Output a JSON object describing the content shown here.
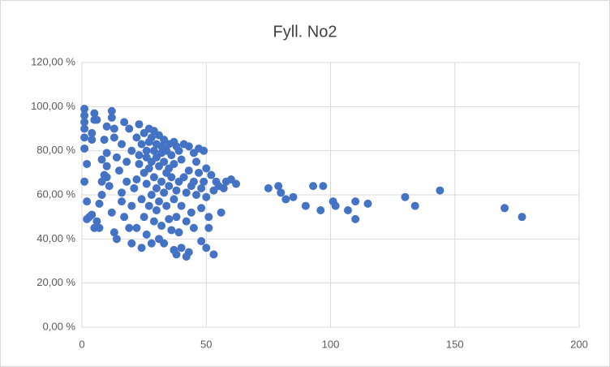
{
  "chart_data": {
    "type": "scatter",
    "title": "Fyll. No2",
    "color": "#4472c4",
    "grid": true,
    "x": [
      1,
      1,
      1,
      1,
      1,
      1,
      2,
      1,
      2,
      2,
      3,
      4,
      4,
      5,
      5,
      4,
      5,
      6,
      7,
      7,
      8,
      6,
      8,
      8,
      9,
      9,
      10,
      10,
      10,
      11,
      10,
      12,
      12,
      12,
      13,
      13,
      14,
      13,
      14,
      15,
      16,
      16,
      16,
      17,
      17,
      18,
      18,
      19,
      19,
      20,
      20,
      20,
      21,
      22,
      22,
      22,
      23,
      23,
      23,
      24,
      24,
      24,
      25,
      25,
      25,
      26,
      26,
      26,
      26,
      27,
      27,
      27,
      27,
      28,
      28,
      28,
      28,
      29,
      29,
      29,
      29,
      30,
      30,
      30,
      30,
      31,
      31,
      31,
      31,
      32,
      32,
      32,
      32,
      33,
      33,
      33,
      33,
      34,
      34,
      34,
      35,
      35,
      35,
      35,
      36,
      36,
      36,
      37,
      37,
      37,
      38,
      38,
      38,
      39,
      39,
      39,
      40,
      40,
      40,
      41,
      41,
      42,
      42,
      43,
      43,
      44,
      44,
      45,
      45,
      45,
      46,
      46,
      47,
      47,
      48,
      48,
      49,
      49,
      50,
      50,
      51,
      51,
      52,
      53,
      54,
      55,
      58,
      62,
      60,
      57,
      56,
      53,
      50,
      48,
      42,
      43,
      37,
      38,
      75,
      79,
      80,
      82,
      85,
      90,
      93,
      96,
      97,
      101,
      102,
      107,
      110,
      110,
      115,
      130,
      134,
      144,
      170,
      177
    ],
    "values": [
      99,
      96,
      93,
      90,
      86,
      81,
      74,
      66,
      57,
      49,
      50,
      85,
      88,
      97,
      94,
      51,
      45,
      48,
      45,
      56,
      60,
      94,
      66,
      76,
      69,
      85,
      91,
      79,
      73,
      64,
      68,
      98,
      95,
      52,
      90,
      86,
      40,
      43,
      77,
      71,
      61,
      83,
      57,
      93,
      50,
      66,
      75,
      90,
      45,
      55,
      38,
      80,
      63,
      86,
      67,
      45,
      92,
      74,
      78,
      83,
      58,
      36,
      88,
      70,
      50,
      80,
      77,
      65,
      42,
      90,
      84,
      72,
      55,
      86,
      75,
      60,
      38,
      89,
      80,
      68,
      48,
      83,
      77,
      63,
      53,
      87,
      73,
      57,
      40,
      82,
      79,
      66,
      46,
      85,
      75,
      61,
      38,
      80,
      70,
      55,
      83,
      72,
      64,
      49,
      78,
      68,
      44,
      84,
      74,
      58,
      82,
      62,
      50,
      80,
      66,
      43,
      76,
      55,
      36,
      83,
      68,
      61,
      48,
      82,
      71,
      64,
      52,
      79,
      66,
      45,
      75,
      60,
      81,
      70,
      63,
      54,
      80,
      66,
      72,
      59,
      50,
      45,
      69,
      62,
      66,
      64,
      66,
      65,
      67,
      63,
      52,
      33,
      36,
      39,
      32,
      34,
      35,
      33,
      63,
      64,
      61,
      58,
      59,
      55,
      64,
      53,
      64,
      57,
      55,
      53,
      57,
      49,
      56,
      59,
      55,
      62,
      54,
      50
    ],
    "xlim": [
      0,
      200
    ],
    "xticks": [
      0,
      50,
      100,
      150,
      200
    ],
    "ylim": [
      0,
      120
    ],
    "yticks": [
      {
        "value": 0,
        "label": "0,00 %"
      },
      {
        "value": 20,
        "label": "20,00 %"
      },
      {
        "value": 40,
        "label": "40,00 %"
      },
      {
        "value": 60,
        "label": "60,00 %"
      },
      {
        "value": 80,
        "label": "80,00 %"
      },
      {
        "value": 100,
        "label": "100,00 %"
      },
      {
        "value": 120,
        "label": "120,00 %"
      }
    ]
  }
}
